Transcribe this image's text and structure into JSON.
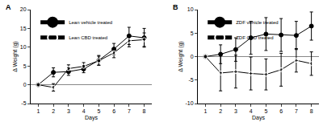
{
  "chart_data": [
    {
      "type": "line",
      "title": "A",
      "x_label": "Days",
      "y_label": "Δ Weight (g)",
      "x": [
        1,
        2,
        3,
        4,
        5,
        6,
        7,
        8
      ],
      "xlim": [
        0.5,
        8.5
      ],
      "xticks": [
        1,
        2,
        3,
        4,
        5,
        6,
        7,
        8
      ],
      "ylim": [
        -5,
        20
      ],
      "yticks": [
        -5,
        0,
        5,
        10,
        15,
        20
      ],
      "legend": "upper left",
      "series": [
        {
          "name": "Lean vehicle treated",
          "color": "#000000",
          "marker": "circle",
          "values": [
            0,
            3.3,
            3.5,
            4.2,
            6.5,
            9.5,
            13,
            12.5
          ],
          "error": [
            0,
            1.2,
            1.0,
            1.0,
            1.3,
            1.5,
            2.3,
            2.5
          ]
        },
        {
          "name": "Lean CBD treated",
          "color": "#000000",
          "marker": "circle-open",
          "values": [
            0,
            -0.7,
            4.3,
            4.9,
            6.4,
            8.5,
            11.7,
            12
          ],
          "error": [
            0,
            1.0,
            1.0,
            1.0,
            1.2,
            1.3,
            1.6,
            1.8
          ]
        }
      ]
    },
    {
      "type": "line",
      "title": "B",
      "x_label": "Days",
      "y_label": "Δ Weight (g)",
      "x": [
        1,
        2,
        3,
        4,
        5,
        6,
        7,
        8
      ],
      "xlim": [
        0.5,
        8.5
      ],
      "xticks": [
        1,
        2,
        3,
        4,
        5,
        6,
        7,
        8
      ],
      "ylim": [
        -10,
        10
      ],
      "yticks": [
        -10,
        -5,
        0,
        5,
        10
      ],
      "legend": "upper left",
      "series": [
        {
          "name": "ZDF vehicle treated",
          "color": "#000000",
          "marker": "circle",
          "values": [
            0,
            0.5,
            1.5,
            4,
            4.8,
            4.6,
            4.5,
            6.5
          ],
          "error": [
            0,
            2.0,
            2.5,
            3.5,
            3.5,
            3.5,
            3.0,
            3.0
          ]
        },
        {
          "name": "ZDF CBD treated",
          "color": "#000000",
          "marker": "circle-open",
          "values": [
            0,
            -3.5,
            -3.2,
            -3.6,
            -3.8,
            -2.8,
            -0.8,
            -1.5
          ],
          "error": [
            0,
            3.8,
            3.5,
            3.5,
            3.3,
            3.5,
            2.5,
            2.5
          ]
        }
      ]
    }
  ]
}
